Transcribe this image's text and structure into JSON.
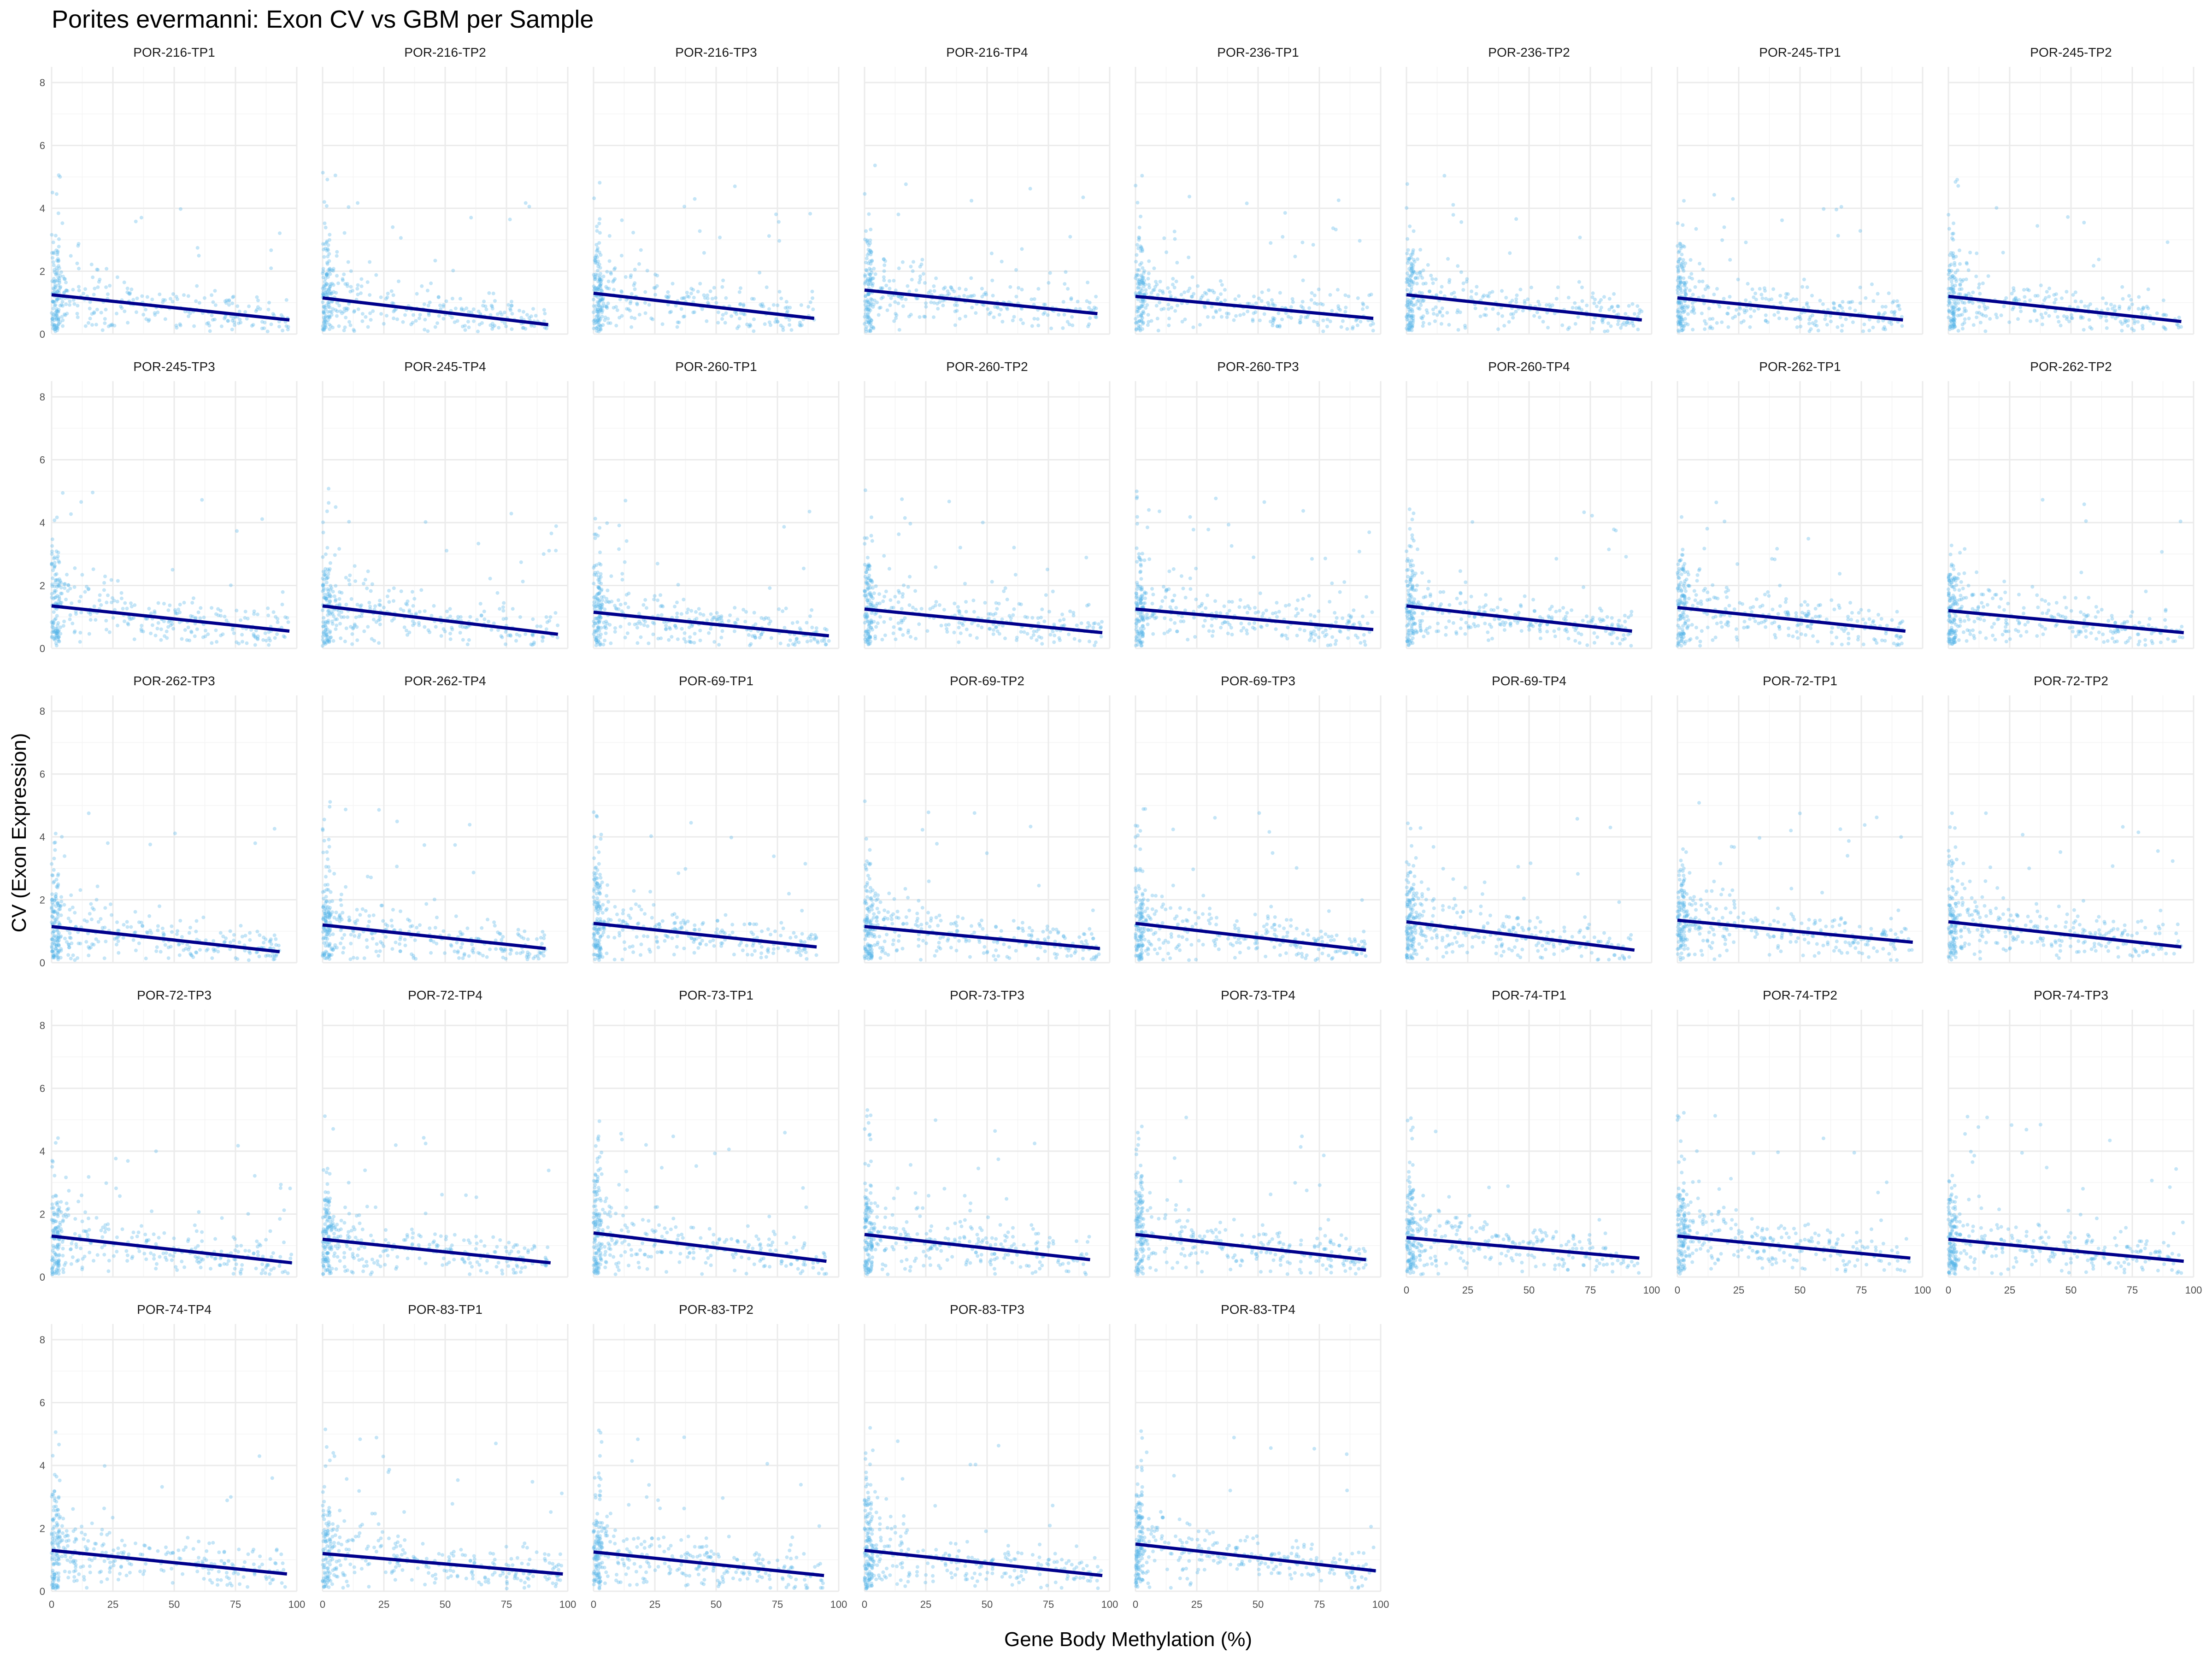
{
  "chart_data": {
    "type": "scatter",
    "title": "Porites evermanni: Exon CV vs GBM per Sample",
    "xlabel": "Gene Body Methylation (%)",
    "ylabel": "CV (Exon Expression)",
    "xlim": [
      0,
      100
    ],
    "ylim": [
      0,
      8.5
    ],
    "x_ticks": [
      0,
      25,
      50,
      75,
      100
    ],
    "y_ticks": [
      0,
      2,
      4,
      6,
      8
    ],
    "grid": true,
    "facet_ncol": 8,
    "point_color": "#56B4E9",
    "fit_line_color": "#00008B",
    "panels": [
      {
        "name": "POR-216-TP1",
        "fit": {
          "x": [
            0,
            97
          ],
          "y": [
            1.25,
            0.45
          ]
        }
      },
      {
        "name": "POR-216-TP2",
        "fit": {
          "x": [
            0,
            92
          ],
          "y": [
            1.15,
            0.3
          ]
        }
      },
      {
        "name": "POR-216-TP3",
        "fit": {
          "x": [
            0,
            90
          ],
          "y": [
            1.3,
            0.5
          ]
        }
      },
      {
        "name": "POR-216-TP4",
        "fit": {
          "x": [
            0,
            95
          ],
          "y": [
            1.4,
            0.65
          ]
        }
      },
      {
        "name": "POR-236-TP1",
        "fit": {
          "x": [
            0,
            97
          ],
          "y": [
            1.2,
            0.5
          ]
        }
      },
      {
        "name": "POR-236-TP2",
        "fit": {
          "x": [
            0,
            96
          ],
          "y": [
            1.25,
            0.45
          ]
        }
      },
      {
        "name": "POR-245-TP1",
        "fit": {
          "x": [
            0,
            92
          ],
          "y": [
            1.15,
            0.45
          ]
        }
      },
      {
        "name": "POR-245-TP2",
        "fit": {
          "x": [
            0,
            95
          ],
          "y": [
            1.2,
            0.4
          ]
        }
      },
      {
        "name": "POR-245-TP3",
        "fit": {
          "x": [
            0,
            97
          ],
          "y": [
            1.35,
            0.55
          ]
        }
      },
      {
        "name": "POR-245-TP4",
        "fit": {
          "x": [
            0,
            96
          ],
          "y": [
            1.35,
            0.45
          ]
        }
      },
      {
        "name": "POR-260-TP1",
        "fit": {
          "x": [
            0,
            96
          ],
          "y": [
            1.15,
            0.4
          ]
        }
      },
      {
        "name": "POR-260-TP2",
        "fit": {
          "x": [
            0,
            97
          ],
          "y": [
            1.25,
            0.5
          ]
        }
      },
      {
        "name": "POR-260-TP3",
        "fit": {
          "x": [
            0,
            97
          ],
          "y": [
            1.25,
            0.6
          ]
        }
      },
      {
        "name": "POR-260-TP4",
        "fit": {
          "x": [
            0,
            92
          ],
          "y": [
            1.35,
            0.55
          ]
        }
      },
      {
        "name": "POR-262-TP1",
        "fit": {
          "x": [
            0,
            93
          ],
          "y": [
            1.3,
            0.55
          ]
        }
      },
      {
        "name": "POR-262-TP2",
        "fit": {
          "x": [
            0,
            96
          ],
          "y": [
            1.2,
            0.5
          ]
        }
      },
      {
        "name": "POR-262-TP3",
        "fit": {
          "x": [
            0,
            93
          ],
          "y": [
            1.15,
            0.35
          ]
        }
      },
      {
        "name": "POR-262-TP4",
        "fit": {
          "x": [
            0,
            91
          ],
          "y": [
            1.2,
            0.45
          ]
        }
      },
      {
        "name": "POR-69-TP1",
        "fit": {
          "x": [
            0,
            91
          ],
          "y": [
            1.25,
            0.5
          ]
        }
      },
      {
        "name": "POR-69-TP2",
        "fit": {
          "x": [
            0,
            96
          ],
          "y": [
            1.15,
            0.45
          ]
        }
      },
      {
        "name": "POR-69-TP3",
        "fit": {
          "x": [
            0,
            94
          ],
          "y": [
            1.25,
            0.4
          ]
        }
      },
      {
        "name": "POR-69-TP4",
        "fit": {
          "x": [
            0,
            93
          ],
          "y": [
            1.3,
            0.4
          ]
        }
      },
      {
        "name": "POR-72-TP1",
        "fit": {
          "x": [
            0,
            96
          ],
          "y": [
            1.35,
            0.65
          ]
        }
      },
      {
        "name": "POR-72-TP2",
        "fit": {
          "x": [
            0,
            95
          ],
          "y": [
            1.3,
            0.5
          ]
        }
      },
      {
        "name": "POR-72-TP3",
        "fit": {
          "x": [
            0,
            98
          ],
          "y": [
            1.3,
            0.45
          ]
        }
      },
      {
        "name": "POR-72-TP4",
        "fit": {
          "x": [
            0,
            93
          ],
          "y": [
            1.2,
            0.45
          ]
        }
      },
      {
        "name": "POR-73-TP1",
        "fit": {
          "x": [
            0,
            95
          ],
          "y": [
            1.4,
            0.5
          ]
        }
      },
      {
        "name": "POR-73-TP3",
        "fit": {
          "x": [
            0,
            92
          ],
          "y": [
            1.35,
            0.55
          ]
        }
      },
      {
        "name": "POR-73-TP4",
        "fit": {
          "x": [
            0,
            94
          ],
          "y": [
            1.35,
            0.55
          ]
        }
      },
      {
        "name": "POR-74-TP1",
        "fit": {
          "x": [
            0,
            95
          ],
          "y": [
            1.25,
            0.6
          ]
        }
      },
      {
        "name": "POR-74-TP2",
        "fit": {
          "x": [
            0,
            95
          ],
          "y": [
            1.3,
            0.6
          ]
        }
      },
      {
        "name": "POR-74-TP3",
        "fit": {
          "x": [
            0,
            96
          ],
          "y": [
            1.2,
            0.5
          ]
        }
      },
      {
        "name": "POR-74-TP4",
        "fit": {
          "x": [
            0,
            96
          ],
          "y": [
            1.3,
            0.55
          ]
        }
      },
      {
        "name": "POR-83-TP1",
        "fit": {
          "x": [
            0,
            98
          ],
          "y": [
            1.2,
            0.55
          ]
        }
      },
      {
        "name": "POR-83-TP2",
        "fit": {
          "x": [
            0,
            94
          ],
          "y": [
            1.25,
            0.5
          ]
        }
      },
      {
        "name": "POR-83-TP3",
        "fit": {
          "x": [
            0,
            97
          ],
          "y": [
            1.3,
            0.5
          ]
        }
      },
      {
        "name": "POR-83-TP4",
        "fit": {
          "x": [
            0,
            98
          ],
          "y": [
            1.5,
            0.65
          ]
        }
      }
    ]
  }
}
